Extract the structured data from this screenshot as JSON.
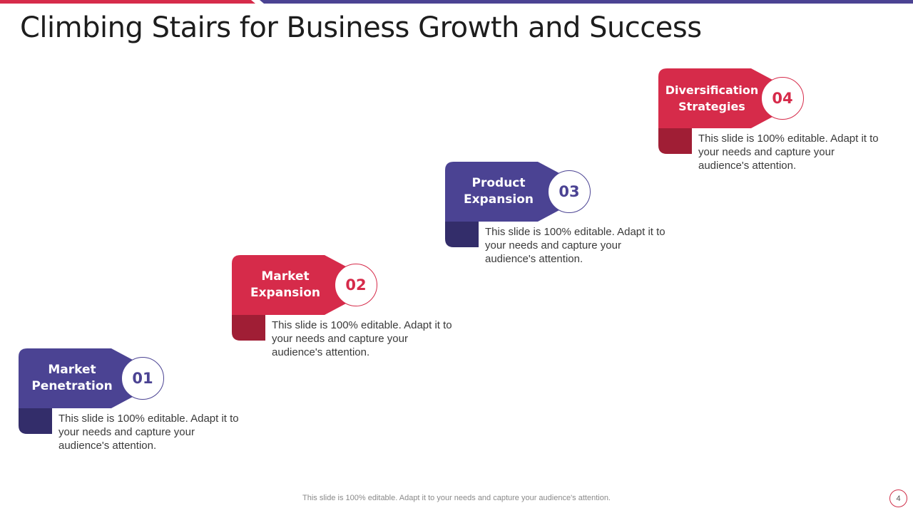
{
  "slide": {
    "title": "Climbing Stairs for Business Growth and Success",
    "footer_note": "This slide is 100% editable. Adapt it to your needs and capture your audience's attention.",
    "page_number": "4"
  },
  "colors": {
    "red": "#d62b4a",
    "red_dark": "#a01e35",
    "purple": "#4b4393",
    "purple_dark": "#332d6a"
  },
  "steps": [
    {
      "number": "01",
      "title_line1": "Market",
      "title_line2": "Penetration",
      "theme": "purple",
      "description": "This slide is 100% editable. Adapt it to your needs and capture your audience's attention."
    },
    {
      "number": "02",
      "title_line1": "Market",
      "title_line2": "Expansion",
      "theme": "red",
      "description": "This slide is 100% editable. Adapt it to your needs and capture your audience's attention."
    },
    {
      "number": "03",
      "title_line1": "Product",
      "title_line2": "Expansion",
      "theme": "purple",
      "description": "This slide is 100% editable. Adapt it to your needs and capture your audience's attention."
    },
    {
      "number": "04",
      "title_line1": "Diversification",
      "title_line2": "Strategies",
      "theme": "red",
      "description": "This slide is 100% editable. Adapt it to your needs and capture your audience's attention."
    }
  ]
}
